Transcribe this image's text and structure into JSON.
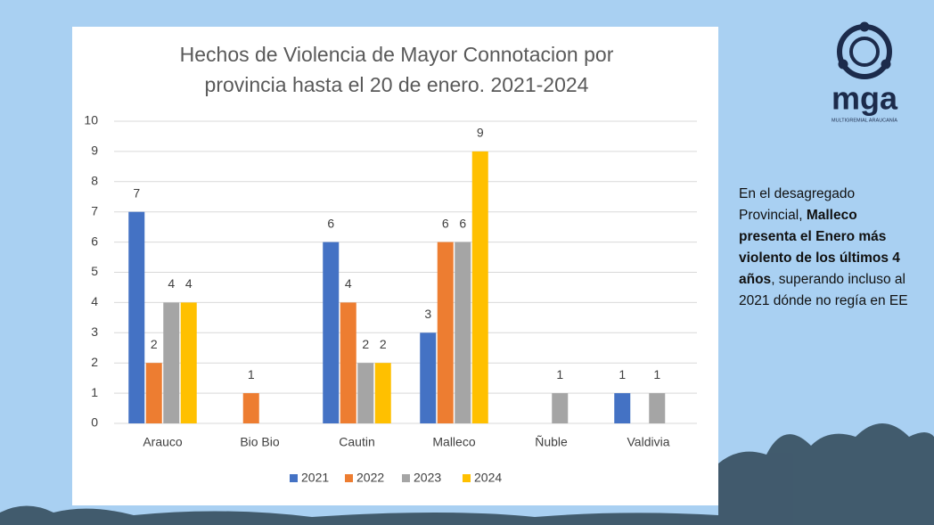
{
  "chart_data": {
    "type": "bar",
    "title": "Hechos de Violencia de Mayor Connotacion por provincia hasta el 20 de enero. 2021-2024",
    "categories": [
      "Arauco",
      "Bio Bio",
      "Cautin",
      "Malleco",
      "Ñuble",
      "Valdivia"
    ],
    "series": [
      {
        "name": "2021",
        "color": "#4472c4",
        "values": [
          7,
          null,
          6,
          3,
          null,
          1
        ]
      },
      {
        "name": "2022",
        "color": "#ed7d31",
        "values": [
          2,
          1,
          4,
          6,
          null,
          null
        ]
      },
      {
        "name": "2023",
        "color": "#a5a5a5",
        "values": [
          4,
          null,
          2,
          6,
          1,
          1
        ]
      },
      {
        "name": "2024",
        "color": "#ffc000",
        "values": [
          4,
          null,
          2,
          9,
          null,
          null
        ]
      }
    ],
    "ylim": [
      0,
      10
    ],
    "yticks": [
      0,
      1,
      2,
      3,
      4,
      5,
      6,
      7,
      8,
      9,
      10
    ],
    "grid": true,
    "legend": "bottom"
  },
  "side_text": {
    "intro": "En el desagregado Provincial, ",
    "highlight": "Malleco presenta el Enero más violento de los últimos 4 años",
    "rest": ", superando incluso al 2021 dónde no regía en EE"
  },
  "logo": {
    "name": "mga",
    "subtitle": "MULTIGREMIAL ARAUCANÍA"
  }
}
